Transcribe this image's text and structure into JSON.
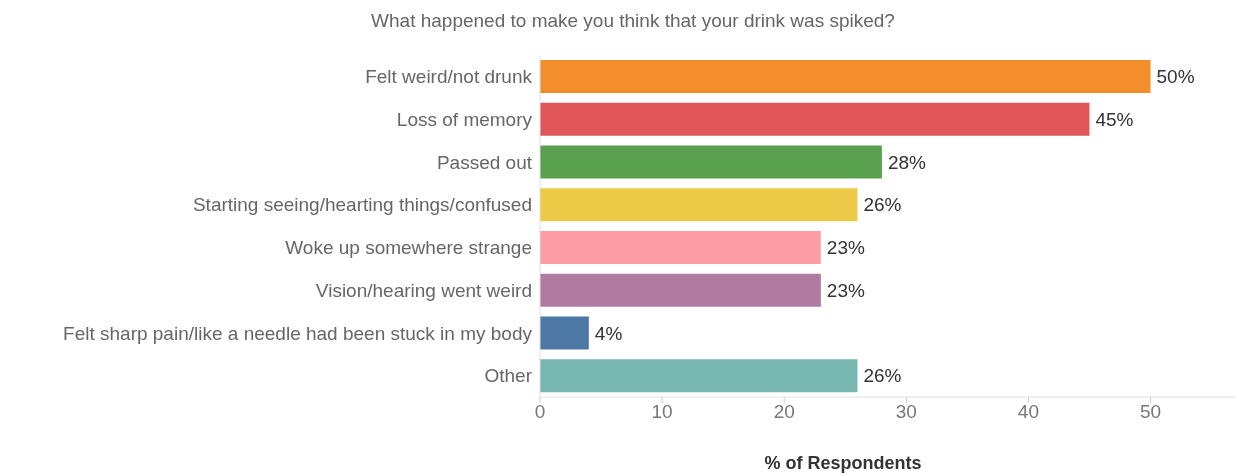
{
  "chart_data": {
    "type": "bar",
    "orientation": "horizontal",
    "title": "What happened to make you think that your drink was spiked?",
    "xlabel": "% of Respondents",
    "categories": [
      "Felt weird/not drunk",
      "Loss of memory",
      "Passed out",
      "Starting seeing/hearting things/confused",
      "Woke up somewhere strange",
      "Vision/hearing went weird",
      "Felt sharp pain/like a needle had been stuck in my body",
      "Other"
    ],
    "values": [
      50,
      45,
      28,
      26,
      23,
      23,
      4,
      26
    ],
    "colors": [
      "#f28e2b",
      "#e15759",
      "#59a14f",
      "#edc948",
      "#ff9da7",
      "#b07aa1",
      "#4e79a7",
      "#76b7b2"
    ],
    "value_labels": [
      "50%",
      "45%",
      "28%",
      "26%",
      "23%",
      "23%",
      "4%",
      "26%"
    ],
    "xlim": [
      0,
      57
    ],
    "xticks": [
      0,
      10,
      20,
      30,
      40,
      50
    ],
    "legend": false,
    "grid": false
  }
}
